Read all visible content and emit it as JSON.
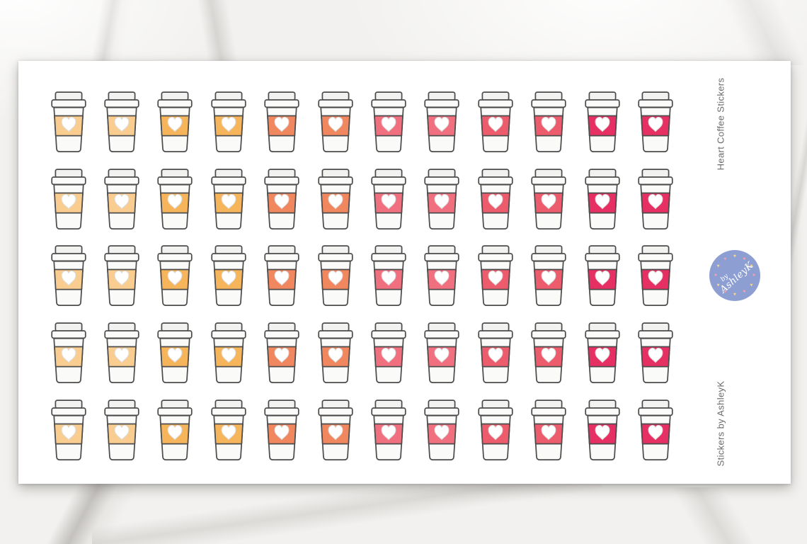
{
  "product": {
    "title": "Heart Coffee Stickers",
    "brand": "Stickers by AshleyK"
  },
  "badge": {
    "line1": "by",
    "line2": "AshleyK",
    "background": "#8d9ed3",
    "text_color": "#ffffff",
    "heart_colors": [
      "#f3d694",
      "#efa3ad"
    ]
  },
  "sticker_sheet": {
    "rows": 5,
    "columns": 12,
    "total_stickers": 60,
    "sticker_type": "coffee-cup-with-heart-sleeve",
    "column_sleeve_colors": [
      "#f9cd90",
      "#f9cd90",
      "#f6b45b",
      "#f6b45b",
      "#f0875f",
      "#f0875f",
      "#f17080",
      "#f17080",
      "#ec5c6c",
      "#ec5c6c",
      "#e62f62",
      "#e62f62"
    ],
    "cup_outline": "#4c4c4c",
    "cup_body": "#fafaf9",
    "lid_fill": "#f2f2f1",
    "heart_fill": "#ffffff"
  }
}
